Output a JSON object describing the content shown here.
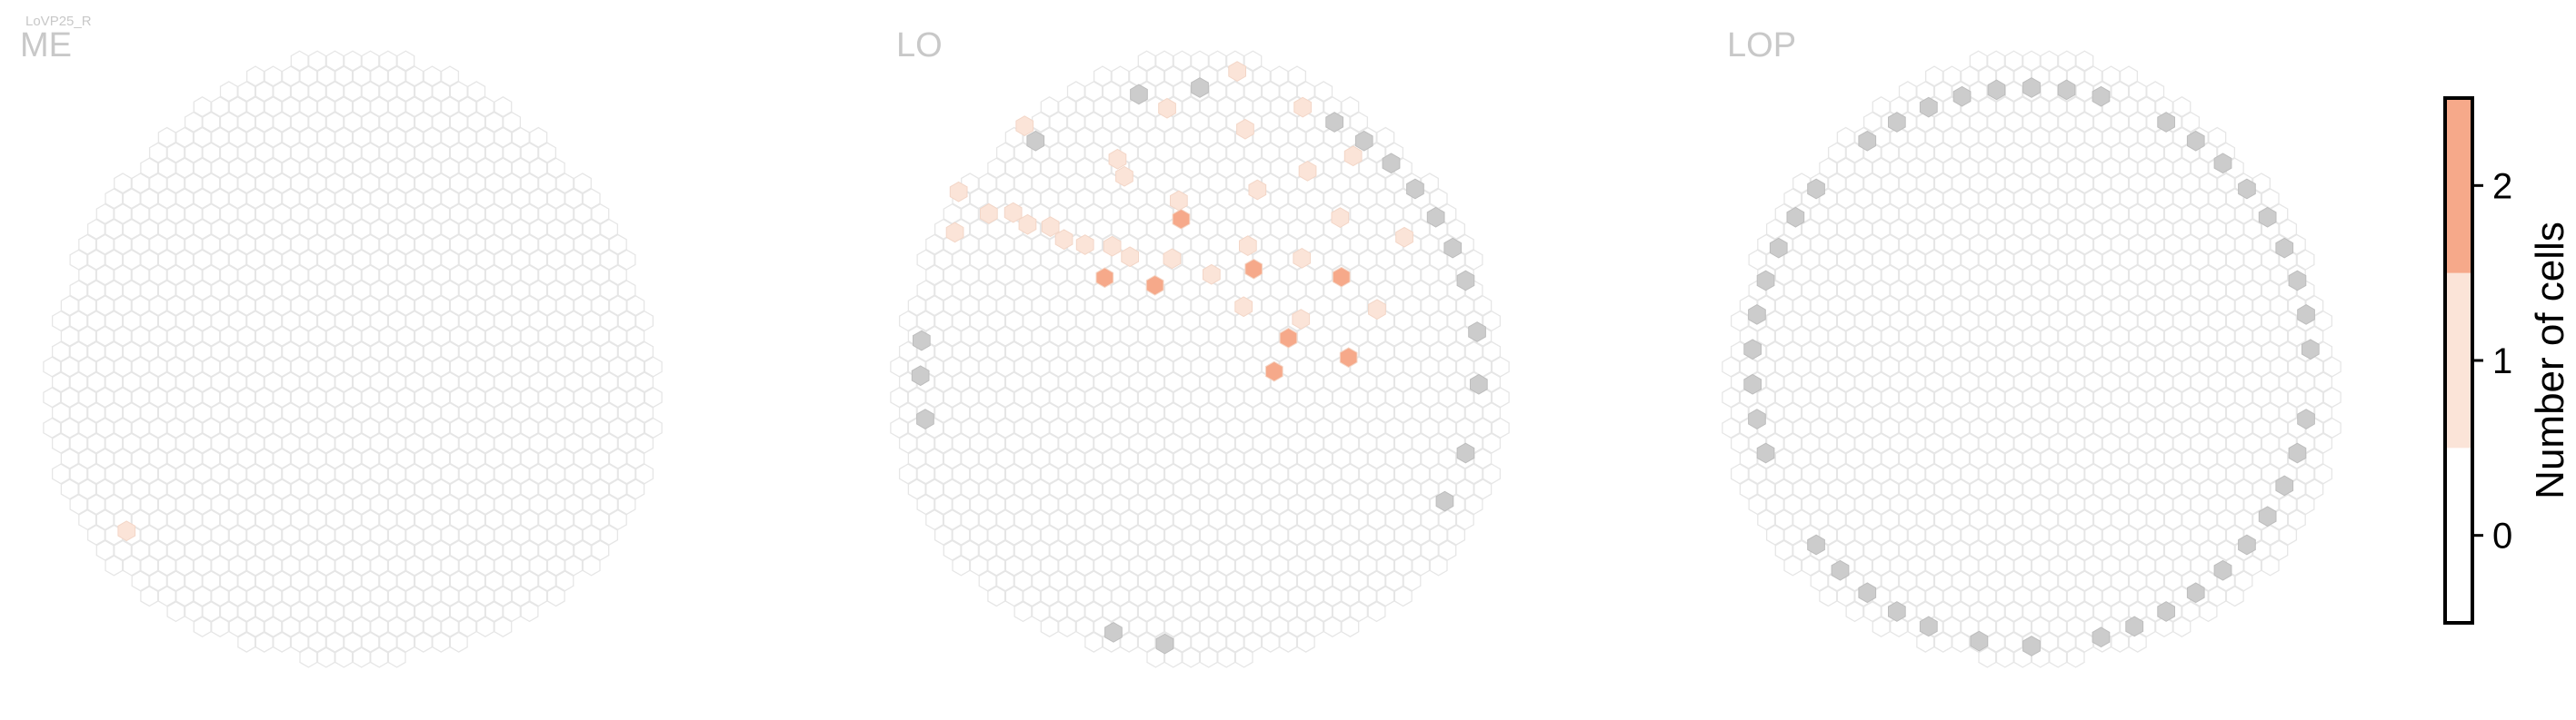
{
  "chart_data": {
    "type": "heatmap",
    "cell_type_label": "LoVP25_R",
    "panels": [
      {
        "title": "ME",
        "hot_cells": [
          {
            "ring": 15,
            "index": 0.15,
            "value": 1
          }
        ],
        "gray_cells": []
      },
      {
        "title": "LO",
        "hot_cells": [
          {
            "ring": 10,
            "index": 0.37,
            "value": 1
          },
          {
            "ring": 11,
            "index": 0.37,
            "value": 1
          },
          {
            "ring": 12,
            "index": 0.36,
            "value": 1
          },
          {
            "ring": 13,
            "index": 0.36,
            "value": 1
          },
          {
            "ring": 14,
            "index": 0.35,
            "value": 1
          },
          {
            "ring": 9,
            "index": 0.38,
            "value": 1
          },
          {
            "ring": 8,
            "index": 0.4,
            "value": 1
          },
          {
            "ring": 7,
            "index": 0.41,
            "value": 1
          },
          {
            "ring": 9,
            "index": 0.48,
            "value": 1
          },
          {
            "ring": 12,
            "index": 0.44,
            "value": 1
          },
          {
            "ring": 10,
            "index": 0.55,
            "value": 1
          },
          {
            "ring": 11,
            "index": 0.62,
            "value": 1
          },
          {
            "ring": 12,
            "index": 0.58,
            "value": 1
          },
          {
            "ring": 13,
            "index": 0.53,
            "value": 1
          },
          {
            "ring": 15,
            "index": 0.33,
            "value": 1
          },
          {
            "ring": 16,
            "index": 0.35,
            "value": 1
          },
          {
            "ring": 13,
            "index": 0.66,
            "value": 1
          },
          {
            "ring": 14,
            "index": 0.6,
            "value": 1
          },
          {
            "ring": 16,
            "index": 0.4,
            "value": 1
          },
          {
            "ring": 6,
            "index": 0.46,
            "value": 1
          },
          {
            "ring": 5,
            "index": 0.52,
            "value": 1
          },
          {
            "ring": 4,
            "index": 0.6,
            "value": 1
          },
          {
            "ring": 7,
            "index": 0.56,
            "value": 1
          },
          {
            "ring": 8,
            "index": 0.62,
            "value": 1
          },
          {
            "ring": 6,
            "index": 0.68,
            "value": 1
          },
          {
            "ring": 10,
            "index": 0.7,
            "value": 1
          },
          {
            "ring": 15,
            "index": 0.56,
            "value": 1
          },
          {
            "ring": 16,
            "index": 0.52,
            "value": 1
          },
          {
            "ring": 14,
            "index": 0.48,
            "value": 1
          },
          {
            "ring": 11,
            "index": 0.44,
            "value": 1
          },
          {
            "ring": 7,
            "index": 0.37,
            "value": 2
          },
          {
            "ring": 5,
            "index": 0.42,
            "value": 2
          },
          {
            "ring": 8,
            "index": 0.48,
            "value": 2
          },
          {
            "ring": 6,
            "index": 0.58,
            "value": 2
          },
          {
            "ring": 9,
            "index": 0.66,
            "value": 2
          },
          {
            "ring": 4,
            "index": 0.76,
            "value": 2
          },
          {
            "ring": 5,
            "index": 0.7,
            "value": 2
          },
          {
            "ring": 8,
            "index": 0.74,
            "value": 2
          }
        ],
        "gray_cells": [
          {
            "ring": 15,
            "index": 0.02
          },
          {
            "ring": 15,
            "index": 0.05
          },
          {
            "ring": 15,
            "index": 0.22
          },
          {
            "ring": 15,
            "index": 0.245
          },
          {
            "ring": 15,
            "index": 0.265
          },
          {
            "ring": 15,
            "index": 0.4
          },
          {
            "ring": 15,
            "index": 0.465
          },
          {
            "ring": 15,
            "index": 0.5
          },
          {
            "ring": 15,
            "index": 0.58
          },
          {
            "ring": 15,
            "index": 0.6
          },
          {
            "ring": 15,
            "index": 0.62
          },
          {
            "ring": 15,
            "index": 0.64
          },
          {
            "ring": 15,
            "index": 0.66
          },
          {
            "ring": 15,
            "index": 0.68
          },
          {
            "ring": 15,
            "index": 0.7
          },
          {
            "ring": 15,
            "index": 0.73
          },
          {
            "ring": 15,
            "index": 0.76
          },
          {
            "ring": 15,
            "index": 0.8
          },
          {
            "ring": 15,
            "index": 0.83
          }
        ]
      },
      {
        "title": "LOP",
        "hot_cells": [],
        "gray_cells": [
          {
            "ring": 15,
            "index": 0.0
          },
          {
            "ring": 15,
            "index": 0.03
          },
          {
            "ring": 15,
            "index": 0.06
          },
          {
            "ring": 15,
            "index": 0.08
          },
          {
            "ring": 15,
            "index": 0.1
          },
          {
            "ring": 15,
            "index": 0.12
          },
          {
            "ring": 15,
            "index": 0.14
          },
          {
            "ring": 15,
            "index": 0.2
          },
          {
            "ring": 15,
            "index": 0.22
          },
          {
            "ring": 15,
            "index": 0.24
          },
          {
            "ring": 15,
            "index": 0.26
          },
          {
            "ring": 15,
            "index": 0.28
          },
          {
            "ring": 15,
            "index": 0.3
          },
          {
            "ring": 15,
            "index": 0.32
          },
          {
            "ring": 15,
            "index": 0.34
          },
          {
            "ring": 15,
            "index": 0.36
          },
          {
            "ring": 15,
            "index": 0.4
          },
          {
            "ring": 15,
            "index": 0.42
          },
          {
            "ring": 15,
            "index": 0.44
          },
          {
            "ring": 15,
            "index": 0.46
          },
          {
            "ring": 15,
            "index": 0.48
          },
          {
            "ring": 15,
            "index": 0.5
          },
          {
            "ring": 15,
            "index": 0.52
          },
          {
            "ring": 15,
            "index": 0.54
          },
          {
            "ring": 15,
            "index": 0.58
          },
          {
            "ring": 15,
            "index": 0.6
          },
          {
            "ring": 15,
            "index": 0.62
          },
          {
            "ring": 15,
            "index": 0.64
          },
          {
            "ring": 15,
            "index": 0.66
          },
          {
            "ring": 15,
            "index": 0.68
          },
          {
            "ring": 15,
            "index": 0.7
          },
          {
            "ring": 15,
            "index": 0.72
          },
          {
            "ring": 15,
            "index": 0.74
          },
          {
            "ring": 15,
            "index": 0.78
          },
          {
            "ring": 15,
            "index": 0.8
          },
          {
            "ring": 15,
            "index": 0.82
          },
          {
            "ring": 15,
            "index": 0.84
          },
          {
            "ring": 15,
            "index": 0.86
          },
          {
            "ring": 15,
            "index": 0.88
          },
          {
            "ring": 15,
            "index": 0.9
          },
          {
            "ring": 15,
            "index": 0.92
          },
          {
            "ring": 15,
            "index": 0.94
          },
          {
            "ring": 15,
            "index": 0.96
          }
        ]
      }
    ],
    "colorbar": {
      "label": "Number of cells",
      "ticks": [
        0,
        1,
        2
      ],
      "tick_labels": [
        "0",
        "1",
        "2"
      ],
      "range": [
        -0.5,
        2.5
      ],
      "colors": [
        "#ffffff",
        "#fbe4d8",
        "#f6a98a"
      ]
    },
    "colors": {
      "empty_stroke": "#e6e6e6",
      "empty_fill": "#ffffff",
      "gray_fill": "#cccccc",
      "value_1": "#fbe4d8",
      "value_2": "#f6a98a"
    }
  }
}
